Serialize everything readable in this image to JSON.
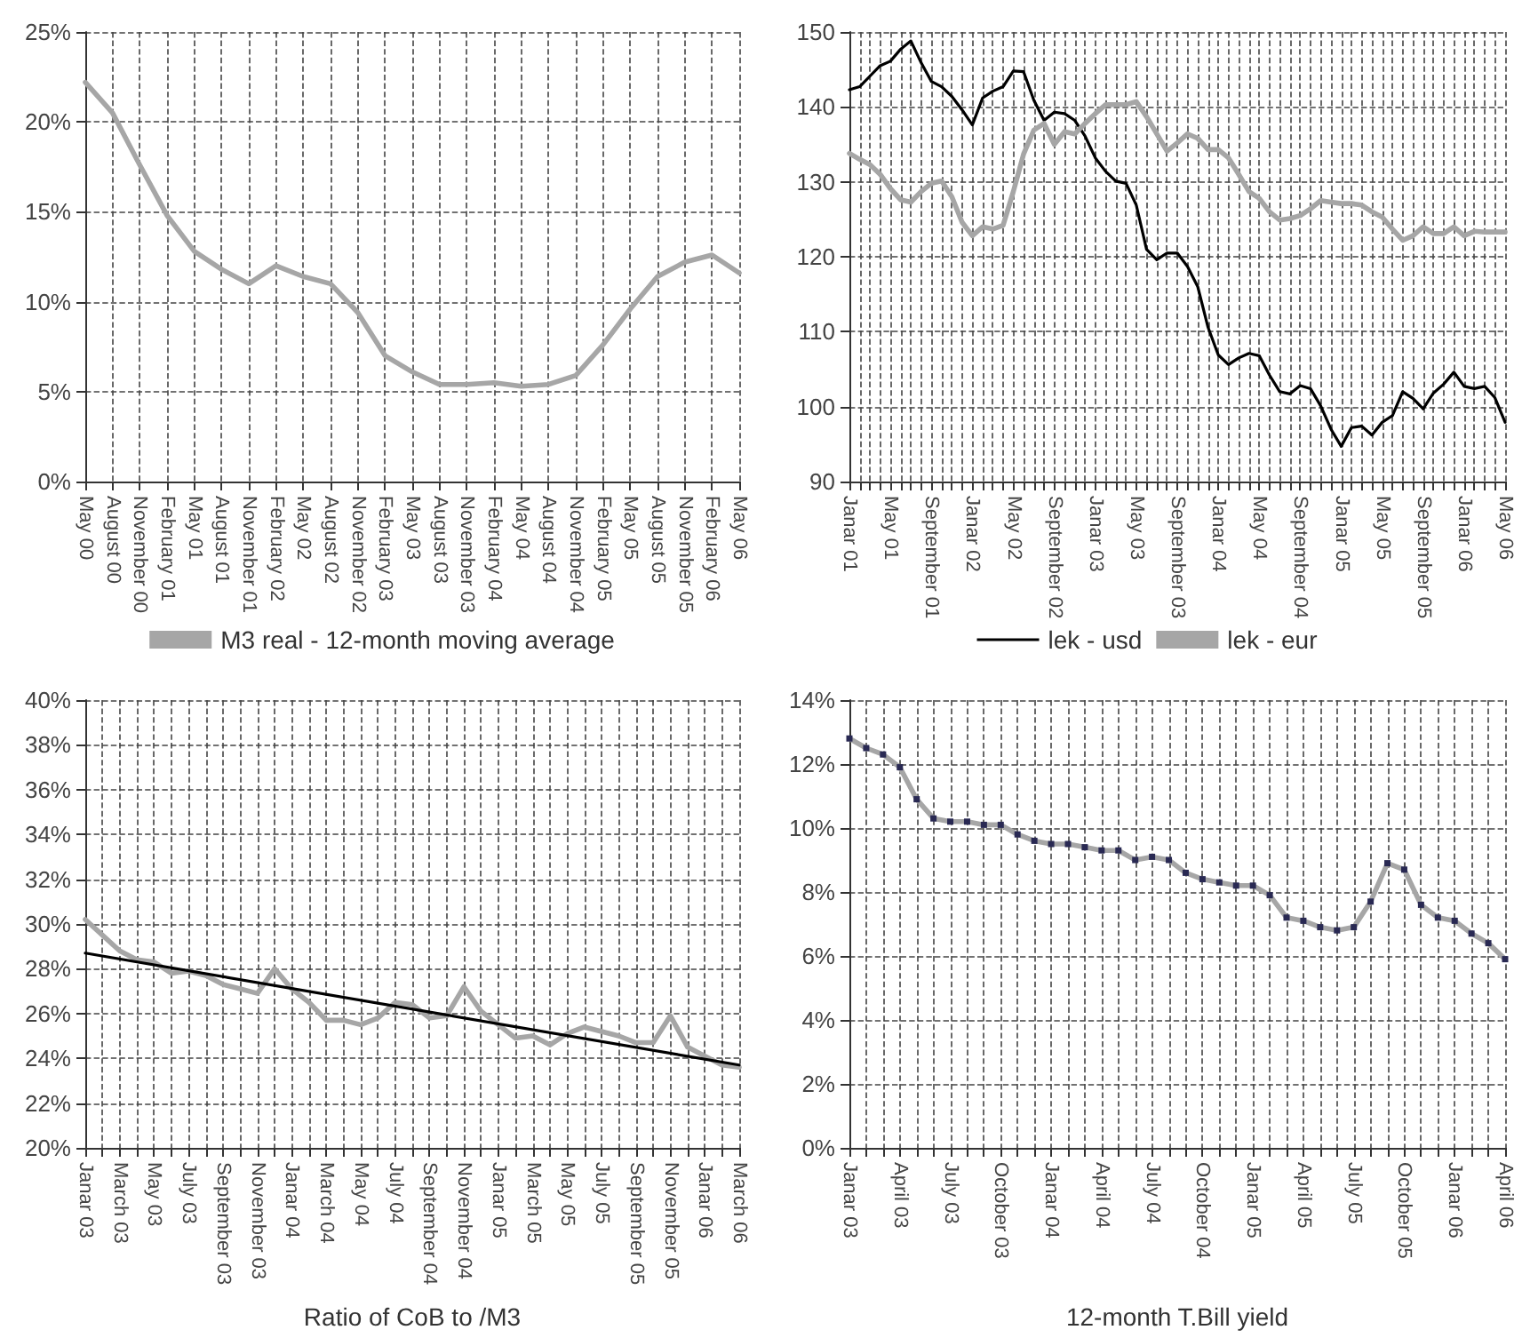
{
  "chart_data": [
    {
      "type": "line",
      "categories": [
        "May 00",
        "August 00",
        "November 00",
        "February 01",
        "May 01",
        "August 01",
        "November 01",
        "February 02",
        "May 02",
        "August 02",
        "November 02",
        "February 03",
        "May 03",
        "August 03",
        "November 03",
        "February 04",
        "May 04",
        "August 04",
        "November 04",
        "February 05",
        "May 05",
        "August 05",
        "November 05",
        "February 06",
        "May 06"
      ],
      "series": [
        {
          "name": "M3 real - 12-month moving average",
          "color": "#a6a6a6",
          "values": [
            22.2,
            20.5,
            17.6,
            14.8,
            12.8,
            11.8,
            11.0,
            12.0,
            11.4,
            11.0,
            9.4,
            7.0,
            6.1,
            5.4,
            5.4,
            5.5,
            5.3,
            5.4,
            5.9,
            7.6,
            9.6,
            11.4,
            12.2,
            12.6,
            11.6
          ]
        }
      ],
      "ylim": [
        0,
        25
      ],
      "yticks": [
        {
          "value": 0,
          "label": "0%"
        },
        {
          "value": 5,
          "label": "5%"
        },
        {
          "value": 10,
          "label": "10%"
        },
        {
          "value": 15,
          "label": "15%"
        },
        {
          "value": 20,
          "label": "20%"
        },
        {
          "value": 25,
          "label": "25%"
        }
      ],
      "grid": true,
      "legend": "bottom",
      "line_style": "solid"
    },
    {
      "type": "line",
      "categories": [
        "Janar 01",
        null,
        null,
        null,
        "May 01",
        null,
        null,
        null,
        "September 01",
        null,
        null,
        null,
        "Janar 02",
        null,
        null,
        null,
        "May 02",
        null,
        null,
        null,
        "September 02",
        null,
        null,
        null,
        "Janar 03",
        null,
        null,
        null,
        "May 03",
        null,
        null,
        null,
        "September 03",
        null,
        null,
        null,
        "Janar 04",
        null,
        null,
        null,
        "May 04",
        null,
        null,
        null,
        "September 04",
        null,
        null,
        null,
        "Janar 05",
        null,
        null,
        null,
        "May 05",
        null,
        null,
        null,
        "September 05",
        null,
        null,
        null,
        "Janar 06",
        null,
        null,
        null,
        "May 06"
      ],
      "series": [
        {
          "name": "lek - usd",
          "color": "#000000",
          "values": [
            142.3,
            142.7,
            144.1,
            145.5,
            146.1,
            147.7,
            148.8,
            145.9,
            143.4,
            142.7,
            141.4,
            139.6,
            137.6,
            141.2,
            142.1,
            142.7,
            144.8,
            144.7,
            140.9,
            138.2,
            139.3,
            139.1,
            138.2,
            136.1,
            133.2,
            131.4,
            130.1,
            129.8,
            126.9,
            121.0,
            119.6,
            120.5,
            120.5,
            118.7,
            116.0,
            110.6,
            106.9,
            105.6,
            106.5,
            107.1,
            106.8,
            104.2,
            102.0,
            101.7,
            102.8,
            102.4,
            100.1,
            97.0,
            94.7,
            97.2,
            97.4,
            96.2,
            97.9,
            98.8,
            102.0,
            101.1,
            99.7,
            101.8,
            103.0,
            104.6,
            102.7,
            102.4,
            102.7,
            101.2,
            97.9
          ]
        },
        {
          "name": "lek - eur",
          "color": "#a6a6a6",
          "values": [
            133.8,
            133.0,
            132.3,
            131.0,
            129.1,
            127.6,
            127.3,
            128.7,
            129.8,
            130.1,
            128.0,
            124.6,
            122.8,
            124.0,
            123.7,
            124.2,
            128.7,
            133.7,
            136.9,
            137.8,
            135.0,
            136.7,
            136.4,
            137.8,
            139.1,
            140.3,
            140.3,
            140.3,
            140.7,
            138.7,
            136.4,
            134.1,
            135.2,
            136.4,
            135.8,
            134.3,
            134.3,
            133.2,
            131.0,
            128.7,
            127.8,
            126.0,
            124.9,
            125.1,
            125.5,
            126.4,
            127.5,
            127.3,
            127.1,
            127.1,
            126.9,
            126.0,
            125.3,
            123.7,
            122.2,
            122.8,
            124.0,
            123.1,
            123.1,
            124.0,
            122.8,
            123.4,
            123.3,
            123.3,
            123.3
          ]
        }
      ],
      "ylim": [
        90,
        150
      ],
      "yticks": [
        90,
        100,
        110,
        120,
        130,
        140,
        150
      ],
      "grid": true,
      "legend": "bottom",
      "line_style": "solid"
    },
    {
      "type": "line",
      "xlabel": "Ratio of CoB to /M3",
      "categories": [
        "Janar 03",
        null,
        "March 03",
        null,
        "May 03",
        null,
        "July 03",
        null,
        "September 03",
        null,
        "November 03",
        null,
        "Janar 04",
        null,
        "March 04",
        null,
        "May 04",
        null,
        "July 04",
        null,
        "September 04",
        null,
        "November 04",
        null,
        "Janar 05",
        null,
        "March 05",
        null,
        "May 05",
        null,
        "July 05",
        null,
        "September 05",
        null,
        "November 05",
        null,
        "Janar 06",
        null,
        "March 06"
      ],
      "series": [
        {
          "color": "#a6a6a6",
          "values": [
            30.2,
            29.5,
            28.8,
            28.4,
            28.3,
            27.8,
            27.9,
            27.7,
            27.3,
            27.1,
            26.9,
            28.0,
            27.1,
            26.5,
            25.7,
            25.7,
            25.5,
            25.8,
            26.5,
            26.4,
            25.8,
            25.9,
            27.2,
            26.1,
            25.5,
            24.9,
            25.0,
            24.6,
            25.1,
            25.4,
            25.2,
            25.0,
            24.7,
            24.7,
            25.9,
            24.5,
            24.1,
            23.7,
            23.6
          ]
        },
        {
          "color": "#000000",
          "x": [
            "Janar 03",
            "March 06"
          ],
          "values": [
            28.7,
            23.7
          ]
        }
      ],
      "ylim": [
        20,
        40
      ],
      "yticks": [
        {
          "value": 20,
          "label": "20%"
        },
        {
          "value": 22,
          "label": "22%"
        },
        {
          "value": 24,
          "label": "24%"
        },
        {
          "value": 26,
          "label": "26%"
        },
        {
          "value": 28,
          "label": "28%"
        },
        {
          "value": 30,
          "label": "30%"
        },
        {
          "value": 32,
          "label": "32%"
        },
        {
          "value": 34,
          "label": "34%"
        },
        {
          "value": 36,
          "label": "36%"
        },
        {
          "value": 38,
          "label": "38%"
        },
        {
          "value": 40,
          "label": "40%"
        }
      ],
      "grid": true,
      "line_style": "solid"
    },
    {
      "type": "line",
      "xlabel": "12-month T.Bill yield",
      "categories": [
        "Janar 03",
        null,
        null,
        "April 03",
        null,
        null,
        "July 03",
        null,
        null,
        "October 03",
        null,
        null,
        "Janar 04",
        null,
        null,
        "April 04",
        null,
        null,
        "July 04",
        null,
        null,
        "October 04",
        null,
        null,
        "Janar 05",
        null,
        null,
        "April 05",
        null,
        null,
        "July 05",
        null,
        null,
        "October 05",
        null,
        null,
        "Janar 06",
        null,
        null,
        "April 06"
      ],
      "series": [
        {
          "color": "#a6a6a6",
          "values": [
            12.8,
            12.5,
            12.3,
            11.9,
            10.9,
            10.3,
            10.2,
            10.2,
            10.1,
            10.1,
            9.8,
            9.6,
            9.5,
            9.5,
            9.4,
            9.3,
            9.3,
            9.0,
            9.1,
            9.0,
            8.6,
            8.4,
            8.3,
            8.2,
            8.2,
            7.9,
            7.2,
            7.1,
            6.9,
            6.8,
            6.9,
            7.7,
            8.9,
            8.7,
            7.6,
            7.2,
            7.1,
            6.7,
            6.4,
            5.9
          ]
        }
      ],
      "ylim": [
        0,
        14
      ],
      "yticks": [
        {
          "value": 0,
          "label": "0%"
        },
        {
          "value": 2,
          "label": "2%"
        },
        {
          "value": 4,
          "label": "4%"
        },
        {
          "value": 6,
          "label": "6%"
        },
        {
          "value": 8,
          "label": "8%"
        },
        {
          "value": 10,
          "label": "10%"
        },
        {
          "value": 12,
          "label": "12%"
        },
        {
          "value": 14,
          "label": "14%"
        }
      ],
      "grid": true,
      "marker": "square",
      "line_style": "solid"
    }
  ]
}
